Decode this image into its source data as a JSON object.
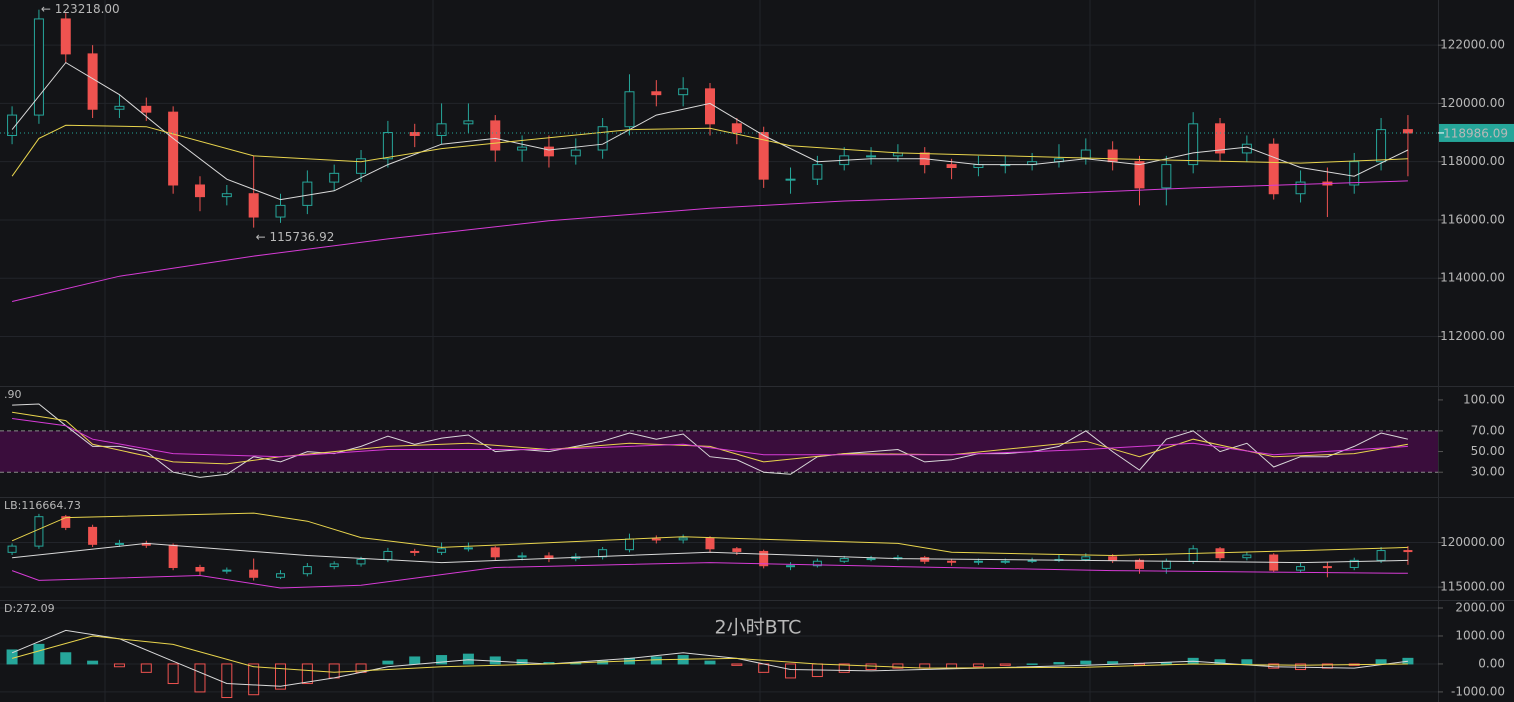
{
  "chart_data": [
    {
      "type": "candlestick",
      "open": [
        118900,
        119600,
        122900,
        121700,
        119800,
        119900,
        119700,
        117200,
        116800,
        116900,
        116100,
        116500,
        117300,
        117600,
        118100,
        119000,
        118900,
        119300,
        119400,
        118400,
        118500,
        118200,
        118400,
        119200,
        120400,
        120300,
        120500,
        119300,
        119000,
        117400,
        117400,
        117900,
        118200,
        118200,
        118300,
        117900,
        117800,
        117900,
        117900,
        118000,
        118100,
        118400,
        118000,
        117100,
        117900,
        119300,
        118300,
        118600,
        116900,
        117300,
        117200,
        118000,
        119100
      ],
      "high": [
        119900,
        123218,
        123100,
        122000,
        120300,
        120200,
        119900,
        117500,
        117200,
        118200,
        116900,
        117700,
        117900,
        118400,
        119400,
        119300,
        120000,
        120000,
        119600,
        118900,
        118900,
        118800,
        119500,
        121000,
        120800,
        120900,
        120700,
        119500,
        119200,
        117800,
        118200,
        118500,
        118500,
        118600,
        118500,
        118100,
        118200,
        118200,
        118300,
        118600,
        118800,
        118700,
        118200,
        118200,
        119700,
        119500,
        118900,
        118800,
        117700,
        117800,
        118300,
        119500,
        119600
      ],
      "low": [
        118600,
        119300,
        121400,
        119500,
        119500,
        119400,
        116900,
        116300,
        116500,
        115736.92,
        115900,
        116200,
        117000,
        117300,
        117800,
        118500,
        118600,
        119000,
        118000,
        118000,
        117800,
        117900,
        118100,
        118900,
        119900,
        119900,
        118900,
        118600,
        117100,
        116900,
        117200,
        117700,
        117900,
        118000,
        117600,
        117400,
        117500,
        117600,
        117700,
        117800,
        117900,
        117700,
        116500,
        116500,
        117600,
        118000,
        118000,
        116700,
        116600,
        116100,
        116900,
        117700,
        117500
      ],
      "close": [
        119600,
        122900,
        121700,
        119800,
        119900,
        119700,
        117200,
        116800,
        116900,
        116100,
        116500,
        117300,
        117600,
        118100,
        119000,
        118900,
        119300,
        119400,
        118400,
        118500,
        118200,
        118400,
        119200,
        120400,
        120300,
        120500,
        119300,
        119000,
        117400,
        117400,
        117900,
        118200,
        118200,
        118300,
        117900,
        117800,
        117900,
        117900,
        118000,
        118100,
        118400,
        118000,
        117100,
        117900,
        119300,
        118300,
        118600,
        116900,
        117300,
        117200,
        118000,
        119100,
        118986.09
      ],
      "series": [
        {
          "color": "#d9d9d9",
          "x": [
            0,
            2,
            4,
            6,
            8,
            10,
            12,
            14,
            16,
            18,
            20,
            22,
            24,
            26,
            28,
            30,
            32,
            34,
            36,
            38,
            40,
            42,
            44,
            46,
            48,
            50,
            52
          ],
          "values": [
            119100,
            121400,
            120300,
            118800,
            117400,
            116700,
            117000,
            117900,
            118600,
            118800,
            118400,
            118600,
            119600,
            120000,
            118900,
            118000,
            118100,
            118100,
            117900,
            117900,
            118100,
            117900,
            118300,
            118500,
            117800,
            117500,
            118400
          ]
        },
        {
          "color": "#e8d44d",
          "x": [
            0,
            1,
            2,
            5,
            9,
            13,
            16,
            23,
            26,
            29,
            33,
            41,
            48,
            52
          ],
          "values": [
            117500,
            118800,
            119250,
            119200,
            118200,
            118000,
            118450,
            119100,
            119150,
            118550,
            118300,
            118100,
            117950,
            118100
          ]
        },
        {
          "color": "#d63bd6",
          "x": [
            0,
            4,
            9,
            14,
            20,
            26,
            31,
            37,
            44,
            52
          ],
          "values": [
            113200,
            114070,
            114760,
            115350,
            115970,
            116400,
            116650,
            116830,
            117100,
            117340
          ]
        }
      ],
      "xlim": [
        -0.45,
        52.45
      ],
      "ylim": [
        110300,
        123550
      ],
      "yticks": [
        {
          "value": 112000,
          "label": "112000.00"
        },
        {
          "value": 114000,
          "label": "114000.00"
        },
        {
          "value": 116000,
          "label": "116000.00"
        },
        {
          "value": 118000,
          "label": "118000.00"
        },
        {
          "value": 120000,
          "label": "120000.00"
        },
        {
          "value": 122000,
          "label": "122000.00"
        }
      ],
      "annotations": [
        "← 123218.00",
        "← 115736.92"
      ],
      "last_price": 118986.09,
      "up_color": "#26a69a",
      "down_color": "#ef5350",
      "grid": true
    },
    {
      "type": "line",
      "label": ".90",
      "label_color": "#d63bd6",
      "series": [
        {
          "color": "#d9d9d9",
          "x": [
            0,
            1,
            2,
            3,
            4,
            5,
            6,
            7,
            8,
            9,
            10,
            11,
            12,
            13,
            14,
            15,
            16,
            17,
            18,
            19,
            20,
            21,
            22,
            23,
            24,
            25,
            26,
            27,
            28,
            29,
            30,
            31,
            32,
            33,
            34,
            35,
            36,
            37,
            38,
            39,
            40,
            41,
            42,
            43,
            44,
            45,
            46,
            47,
            48,
            49,
            50,
            51,
            52
          ],
          "values": [
            95,
            96,
            75,
            55,
            55,
            50,
            30,
            25,
            28,
            45,
            40,
            50,
            48,
            55,
            65,
            57,
            63,
            66,
            50,
            52,
            50,
            55,
            60,
            68,
            62,
            67,
            45,
            42,
            30,
            28,
            45,
            48,
            50,
            52,
            40,
            42,
            48,
            48,
            50,
            55,
            70,
            50,
            32,
            62,
            70,
            50,
            58,
            35,
            45,
            45,
            55,
            68,
            62
          ]
        },
        {
          "color": "#e8d44d",
          "x": [
            0,
            2,
            3,
            6,
            8,
            10,
            14,
            17,
            20,
            23,
            26,
            28,
            31,
            35,
            40,
            42,
            44,
            47,
            50,
            52
          ],
          "values": [
            88,
            80,
            57,
            40,
            38,
            45,
            55,
            58,
            52,
            58,
            55,
            40,
            48,
            47,
            60,
            45,
            62,
            45,
            48,
            57
          ]
        },
        {
          "color": "#d63bd6",
          "x": [
            0,
            2,
            3,
            6,
            10,
            14,
            20,
            25,
            28,
            35,
            40,
            44,
            47,
            52
          ],
          "values": [
            82,
            75,
            62,
            48,
            45,
            52,
            52,
            57,
            47,
            47,
            52,
            58,
            47,
            55
          ]
        }
      ],
      "xlim": [
        -0.45,
        52.45
      ],
      "ylim": [
        6,
        112.5
      ],
      "yticks": [
        {
          "value": 30,
          "label": "30.00"
        },
        {
          "value": 50,
          "label": "50.00"
        },
        {
          "value": 70,
          "label": "70.00"
        },
        {
          "value": 100,
          "label": "100.00"
        }
      ],
      "band": [
        30,
        70
      ],
      "band_color": "#3a0d3c"
    },
    {
      "type": "bollinger",
      "label": "LB:116664.73",
      "label_color": "#d63bd6",
      "series": [
        {
          "color": "#e8d44d",
          "x": [
            0,
            2,
            9,
            11,
            13,
            16,
            25,
            33,
            35,
            41,
            48,
            52
          ],
          "values": [
            120200,
            122800,
            123300,
            122400,
            120550,
            119450,
            120650,
            119900,
            118900,
            118550,
            119100,
            119450
          ]
        },
        {
          "color": "#d9d9d9",
          "x": [
            0,
            5,
            11,
            16,
            26,
            33,
            48,
            52
          ],
          "values": [
            118300,
            119900,
            118550,
            117750,
            118900,
            118200,
            117750,
            118000
          ]
        },
        {
          "color": "#d63bd6",
          "x": [
            0,
            1,
            7,
            10,
            13,
            18,
            26,
            33,
            41,
            48,
            52
          ],
          "values": [
            116850,
            115750,
            116300,
            114900,
            115200,
            117200,
            117750,
            117300,
            116850,
            116650,
            116550
          ]
        }
      ],
      "xlim": [
        -0.45,
        52.45
      ],
      "ylim": [
        113550,
        125000
      ],
      "yticks": [
        {
          "value": 115000,
          "label": "115000.00"
        },
        {
          "value": 120000,
          "label": "120000.00"
        }
      ]
    },
    {
      "type": "macd",
      "label": "D:272.09",
      "label_color": "#4fc3a1",
      "values": [
        500,
        700,
        400,
        100,
        -100,
        -300,
        -700,
        -1000,
        -1200,
        -1100,
        -900,
        -700,
        -500,
        -300,
        100,
        250,
        300,
        350,
        250,
        150,
        50,
        50,
        100,
        200,
        250,
        300,
        100,
        -50,
        -300,
        -500,
        -450,
        -300,
        -200,
        -150,
        -150,
        -150,
        -100,
        -50,
        0,
        50,
        100,
        80,
        -50,
        50,
        200,
        150,
        150,
        -150,
        -200,
        -150,
        -50,
        150,
        200
      ],
      "series": [
        {
          "color": "#d9d9d9",
          "x": [
            0,
            2,
            4,
            6,
            8,
            10,
            12,
            14,
            17,
            20,
            23,
            25,
            27,
            29,
            32,
            36,
            40,
            44,
            47,
            50,
            52
          ],
          "values": [
            400,
            1200,
            900,
            100,
            -700,
            -800,
            -500,
            -100,
            150,
            0,
            200,
            400,
            200,
            -200,
            -250,
            -150,
            -50,
            100,
            -100,
            -150,
            100
          ]
        },
        {
          "color": "#e8d44d",
          "x": [
            0,
            3,
            6,
            9,
            12,
            16,
            20,
            24,
            27,
            30,
            34,
            40,
            44,
            48,
            52
          ],
          "values": [
            200,
            1000,
            700,
            -100,
            -300,
            -100,
            0,
            150,
            200,
            0,
            -150,
            -120,
            0,
            -50,
            0
          ]
        }
      ],
      "xlim": [
        -0.45,
        52.45
      ],
      "ylim": [
        -1360,
        2250
      ],
      "yticks": [
        {
          "value": -1000,
          "label": "-1000.00"
        },
        {
          "value": 0,
          "label": "0.00"
        },
        {
          "value": 1000,
          "label": "1000.00"
        },
        {
          "value": 2000,
          "label": "2000.00"
        }
      ],
      "up_color": "#26a69a",
      "down_color": "#ef5350",
      "watermark": "2小时BTC"
    }
  ]
}
